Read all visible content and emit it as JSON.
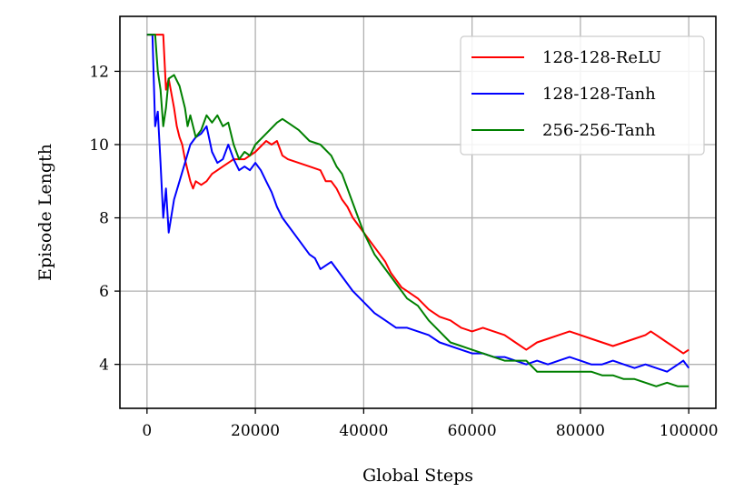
{
  "chart_data": {
    "type": "line",
    "title": "",
    "xlabel": "Global Steps",
    "ylabel": "Episode Length",
    "xlim": [
      -5000,
      105000
    ],
    "ylim": [
      2.8,
      13.5
    ],
    "xticks": [
      0,
      20000,
      40000,
      60000,
      80000,
      100000
    ],
    "xtick_labels": [
      "0",
      "20000",
      "40000",
      "60000",
      "80000",
      "100000"
    ],
    "yticks": [
      4,
      6,
      8,
      10,
      12
    ],
    "ytick_labels": [
      "4",
      "6",
      "8",
      "10",
      "12"
    ],
    "grid": true,
    "legend_position": "top-right",
    "series": [
      {
        "name": "128-128-ReLU",
        "color": "#ff0000",
        "x": [
          0,
          2000,
          3000,
          3500,
          4000,
          5000,
          5500,
          6000,
          6500,
          7000,
          7500,
          8000,
          8500,
          9000,
          10000,
          11000,
          12000,
          13000,
          14000,
          15000,
          16000,
          18000,
          20000,
          22000,
          23000,
          24000,
          25000,
          26000,
          28000,
          30000,
          32000,
          33000,
          34000,
          35000,
          36000,
          37000,
          38000,
          39000,
          40000,
          41000,
          42000,
          43000,
          44000,
          45000,
          46000,
          47000,
          48000,
          50000,
          52000,
          54000,
          56000,
          58000,
          60000,
          62000,
          64000,
          66000,
          68000,
          70000,
          72000,
          74000,
          76000,
          78000,
          80000,
          82000,
          84000,
          86000,
          88000,
          90000,
          92000,
          93000,
          94000,
          95000,
          96000,
          97000,
          98000,
          99000,
          100000
        ],
        "y": [
          13.0,
          13.0,
          13.0,
          11.5,
          11.8,
          11.0,
          10.5,
          10.2,
          10.0,
          9.6,
          9.3,
          9.0,
          8.8,
          9.0,
          8.9,
          9.0,
          9.2,
          9.3,
          9.4,
          9.5,
          9.6,
          9.6,
          9.8,
          10.1,
          10.0,
          10.1,
          9.7,
          9.6,
          9.5,
          9.4,
          9.3,
          9.0,
          9.0,
          8.8,
          8.5,
          8.3,
          8.0,
          7.8,
          7.6,
          7.4,
          7.2,
          7.0,
          6.8,
          6.5,
          6.3,
          6.1,
          6.0,
          5.8,
          5.5,
          5.3,
          5.2,
          5.0,
          4.9,
          5.0,
          4.9,
          4.8,
          4.6,
          4.4,
          4.6,
          4.7,
          4.8,
          4.9,
          4.8,
          4.7,
          4.6,
          4.5,
          4.6,
          4.7,
          4.8,
          4.9,
          4.8,
          4.7,
          4.6,
          4.5,
          4.4,
          4.3,
          4.4
        ]
      },
      {
        "name": "128-128-Tanh",
        "color": "#0000ff",
        "x": [
          0,
          1000,
          1500,
          2000,
          2500,
          3000,
          3500,
          4000,
          5000,
          6000,
          7000,
          8000,
          9000,
          10000,
          11000,
          12000,
          13000,
          14000,
          15000,
          16000,
          17000,
          18000,
          19000,
          20000,
          21000,
          22000,
          23000,
          24000,
          25000,
          26000,
          28000,
          30000,
          31000,
          32000,
          33000,
          34000,
          35000,
          36000,
          38000,
          40000,
          42000,
          44000,
          46000,
          48000,
          50000,
          52000,
          54000,
          56000,
          58000,
          60000,
          62000,
          64000,
          66000,
          68000,
          70000,
          72000,
          74000,
          76000,
          78000,
          80000,
          82000,
          84000,
          86000,
          88000,
          90000,
          92000,
          94000,
          96000,
          98000,
          99000,
          100000
        ],
        "y": [
          13.0,
          13.0,
          10.5,
          10.9,
          9.5,
          8.0,
          8.8,
          7.6,
          8.5,
          9.0,
          9.5,
          10.0,
          10.2,
          10.3,
          10.5,
          9.8,
          9.5,
          9.6,
          10.0,
          9.6,
          9.3,
          9.4,
          9.3,
          9.5,
          9.3,
          9.0,
          8.7,
          8.3,
          8.0,
          7.8,
          7.4,
          7.0,
          6.9,
          6.6,
          6.7,
          6.8,
          6.6,
          6.4,
          6.0,
          5.7,
          5.4,
          5.2,
          5.0,
          5.0,
          4.9,
          4.8,
          4.6,
          4.5,
          4.4,
          4.3,
          4.3,
          4.2,
          4.2,
          4.1,
          4.0,
          4.1,
          4.0,
          4.1,
          4.2,
          4.1,
          4.0,
          4.0,
          4.1,
          4.0,
          3.9,
          4.0,
          3.9,
          3.8,
          4.0,
          4.1,
          3.9
        ]
      },
      {
        "name": "256-256-Tanh",
        "color": "#008000",
        "x": [
          0,
          1500,
          2000,
          2500,
          3000,
          3500,
          4000,
          5000,
          6000,
          7000,
          7500,
          8000,
          9000,
          10000,
          11000,
          12000,
          13000,
          14000,
          15000,
          16000,
          17000,
          18000,
          19000,
          20000,
          22000,
          24000,
          25000,
          26000,
          28000,
          30000,
          32000,
          34000,
          35000,
          36000,
          37000,
          38000,
          40000,
          42000,
          44000,
          46000,
          48000,
          50000,
          52000,
          54000,
          56000,
          58000,
          60000,
          62000,
          64000,
          66000,
          68000,
          70000,
          72000,
          74000,
          76000,
          78000,
          80000,
          82000,
          84000,
          86000,
          88000,
          90000,
          92000,
          94000,
          96000,
          98000,
          99000,
          100000
        ],
        "y": [
          13.0,
          13.0,
          12.0,
          11.5,
          10.5,
          11.0,
          11.8,
          11.9,
          11.6,
          11.0,
          10.5,
          10.8,
          10.2,
          10.4,
          10.8,
          10.6,
          10.8,
          10.5,
          10.6,
          10.0,
          9.6,
          9.8,
          9.7,
          10.0,
          10.3,
          10.6,
          10.7,
          10.6,
          10.4,
          10.1,
          10.0,
          9.7,
          9.4,
          9.2,
          8.8,
          8.4,
          7.6,
          7.0,
          6.6,
          6.2,
          5.8,
          5.6,
          5.2,
          4.9,
          4.6,
          4.5,
          4.4,
          4.3,
          4.2,
          4.1,
          4.1,
          4.1,
          3.8,
          3.8,
          3.8,
          3.8,
          3.8,
          3.8,
          3.7,
          3.7,
          3.6,
          3.6,
          3.5,
          3.4,
          3.5,
          3.4,
          3.4,
          3.4
        ]
      }
    ]
  }
}
